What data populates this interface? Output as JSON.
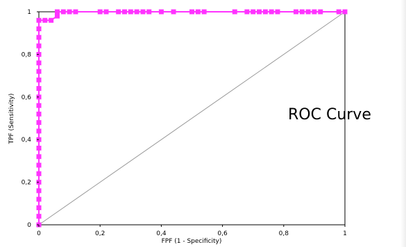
{
  "chart_data": {
    "type": "line",
    "title": "ROC Curve",
    "xlabel": "FPF (1 - Specificity)",
    "ylabel": "TPF (Sensitivity)",
    "xlim": [
      0,
      1
    ],
    "ylim": [
      0,
      1
    ],
    "x_ticks": [
      "0",
      "0,2",
      "0,4",
      "0,6",
      "0,8",
      "1"
    ],
    "y_ticks": [
      "0",
      "0,2",
      "0,4",
      "0,6",
      "0,8",
      "1"
    ],
    "grid": false,
    "legend": "none",
    "colors": {
      "curve": "#ff33ff",
      "chance_line": "#999999",
      "frame": "#000000"
    },
    "series": [
      {
        "points": [
          [
            0,
            0
          ],
          [
            0,
            0.04
          ],
          [
            0,
            0.08
          ],
          [
            0,
            0.12
          ],
          [
            0,
            0.16
          ],
          [
            0,
            0.2
          ],
          [
            0,
            0.24
          ],
          [
            0,
            0.28
          ],
          [
            0,
            0.32
          ],
          [
            0,
            0.36
          ],
          [
            0,
            0.4
          ],
          [
            0,
            0.44
          ],
          [
            0,
            0.48
          ],
          [
            0,
            0.52
          ],
          [
            0,
            0.56
          ],
          [
            0,
            0.6
          ],
          [
            0,
            0.64
          ],
          [
            0,
            0.68
          ],
          [
            0,
            0.72
          ],
          [
            0,
            0.76
          ],
          [
            0,
            0.8
          ],
          [
            0,
            0.84
          ],
          [
            0,
            0.88
          ],
          [
            0,
            0.92
          ],
          [
            0,
            0.96
          ],
          [
            0.02,
            0.96
          ],
          [
            0.04,
            0.96
          ],
          [
            0.06,
            0.98
          ],
          [
            0.06,
            1.0
          ],
          [
            0.08,
            1.0
          ],
          [
            0.1,
            1.0
          ],
          [
            0.12,
            1.0
          ],
          [
            0.2,
            1.0
          ],
          [
            0.22,
            1.0
          ],
          [
            0.26,
            1.0
          ],
          [
            0.28,
            1.0
          ],
          [
            0.3,
            1.0
          ],
          [
            0.32,
            1.0
          ],
          [
            0.34,
            1.0
          ],
          [
            0.36,
            1.0
          ],
          [
            0.4,
            1.0
          ],
          [
            0.44,
            1.0
          ],
          [
            0.5,
            1.0
          ],
          [
            0.52,
            1.0
          ],
          [
            0.54,
            1.0
          ],
          [
            0.64,
            1.0
          ],
          [
            0.68,
            1.0
          ],
          [
            0.7,
            1.0
          ],
          [
            0.72,
            1.0
          ],
          [
            0.74,
            1.0
          ],
          [
            0.76,
            1.0
          ],
          [
            0.78,
            1.0
          ],
          [
            0.84,
            1.0
          ],
          [
            0.86,
            1.0
          ],
          [
            0.88,
            1.0
          ],
          [
            0.9,
            1.0
          ],
          [
            0.92,
            1.0
          ],
          [
            0.98,
            1.0
          ],
          [
            1.0,
            1.0
          ]
        ]
      }
    ],
    "reference_line": [
      [
        0,
        0
      ],
      [
        1,
        1
      ]
    ]
  }
}
